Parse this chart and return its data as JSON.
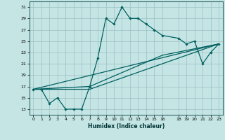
{
  "xlabel": "Humidex (Indice chaleur)",
  "xlim": [
    -0.5,
    23.5
  ],
  "ylim": [
    12,
    32
  ],
  "yticks": [
    13,
    15,
    17,
    19,
    21,
    23,
    25,
    27,
    29,
    31
  ],
  "xticks": [
    0,
    1,
    2,
    3,
    4,
    5,
    6,
    7,
    8,
    9,
    10,
    11,
    12,
    13,
    14,
    15,
    16,
    18,
    19,
    20,
    21,
    22,
    23
  ],
  "bg_color": "#c5e5e5",
  "grid_color": "#9bbfbf",
  "line_color": "#005f5f",
  "main_line": {
    "x": [
      0,
      1,
      2,
      3,
      4,
      5,
      6,
      7,
      8,
      9,
      10,
      11,
      12,
      13,
      14,
      15,
      16,
      18,
      19,
      20,
      21,
      22,
      23
    ],
    "y": [
      16.5,
      16.5,
      14.0,
      15.0,
      13.0,
      13.0,
      13.0,
      17.0,
      22.0,
      29.0,
      28.0,
      31.0,
      29.0,
      29.0,
      28.0,
      27.0,
      26.0,
      25.5,
      24.5,
      25.0,
      21.0,
      23.0,
      24.5
    ]
  },
  "extra_lines": [
    {
      "x": [
        0,
        23
      ],
      "y": [
        16.5,
        24.5
      ]
    },
    {
      "x": [
        0,
        7,
        16,
        23
      ],
      "y": [
        16.5,
        17.0,
        22.5,
        24.5
      ]
    },
    {
      "x": [
        0,
        7,
        16,
        23
      ],
      "y": [
        16.5,
        16.5,
        21.0,
        24.5
      ]
    }
  ]
}
